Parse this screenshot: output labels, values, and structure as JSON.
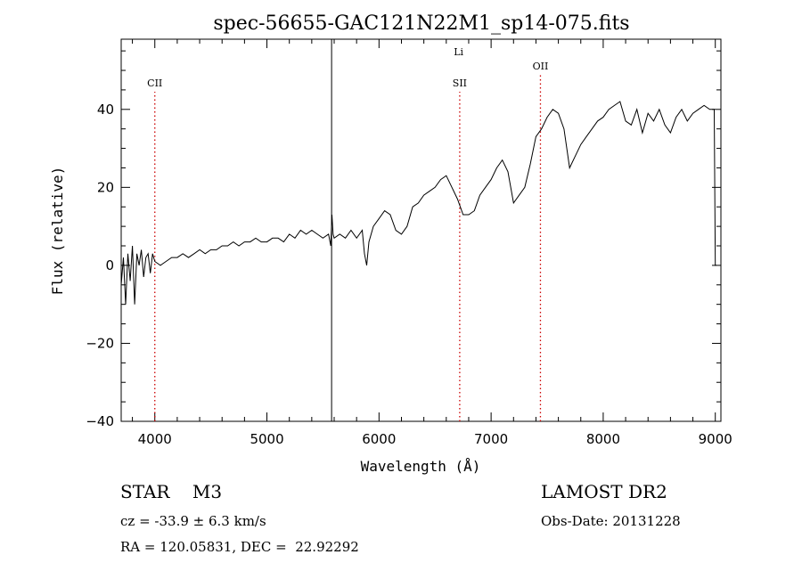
{
  "chart_data": {
    "type": "line",
    "title": "spec-56655-GAC121N22M1_sp14-075.fits",
    "xlabel": "Wavelength (Å)",
    "ylabel": "Flux (relative)",
    "xlim": [
      3700,
      9050
    ],
    "ylim": [
      -40,
      58
    ],
    "xticks": [
      4000,
      5000,
      6000,
      7000,
      8000,
      9000
    ],
    "yticks": [
      -40,
      -20,
      0,
      20,
      40
    ],
    "line_color": "#000000",
    "marker_color": "#cc0000",
    "series": [
      {
        "points": [
          [
            3700,
            -5
          ],
          [
            3720,
            2
          ],
          [
            3740,
            -10
          ],
          [
            3760,
            3
          ],
          [
            3780,
            -4
          ],
          [
            3800,
            5
          ],
          [
            3820,
            -10
          ],
          [
            3840,
            3
          ],
          [
            3860,
            0
          ],
          [
            3880,
            4
          ],
          [
            3900,
            -3
          ],
          [
            3920,
            2
          ],
          [
            3940,
            3
          ],
          [
            3960,
            -2
          ],
          [
            3980,
            3
          ],
          [
            4000,
            1
          ],
          [
            4050,
            0
          ],
          [
            4100,
            1
          ],
          [
            4150,
            2
          ],
          [
            4200,
            2
          ],
          [
            4250,
            3
          ],
          [
            4300,
            2
          ],
          [
            4350,
            3
          ],
          [
            4400,
            4
          ],
          [
            4450,
            3
          ],
          [
            4500,
            4
          ],
          [
            4550,
            4
          ],
          [
            4600,
            5
          ],
          [
            4650,
            5
          ],
          [
            4700,
            6
          ],
          [
            4750,
            5
          ],
          [
            4800,
            6
          ],
          [
            4850,
            6
          ],
          [
            4900,
            7
          ],
          [
            4950,
            6
          ],
          [
            5000,
            6
          ],
          [
            5050,
            7
          ],
          [
            5100,
            7
          ],
          [
            5150,
            6
          ],
          [
            5200,
            8
          ],
          [
            5250,
            7
          ],
          [
            5300,
            9
          ],
          [
            5350,
            8
          ],
          [
            5400,
            9
          ],
          [
            5450,
            8
          ],
          [
            5500,
            7
          ],
          [
            5550,
            8
          ],
          [
            5570,
            5
          ],
          [
            5580,
            13
          ],
          [
            5590,
            8
          ],
          [
            5600,
            7
          ],
          [
            5650,
            8
          ],
          [
            5700,
            7
          ],
          [
            5750,
            9
          ],
          [
            5800,
            7
          ],
          [
            5850,
            9
          ],
          [
            5870,
            3
          ],
          [
            5890,
            0
          ],
          [
            5910,
            6
          ],
          [
            5950,
            10
          ],
          [
            6000,
            12
          ],
          [
            6050,
            14
          ],
          [
            6100,
            13
          ],
          [
            6150,
            9
          ],
          [
            6200,
            8
          ],
          [
            6250,
            10
          ],
          [
            6300,
            15
          ],
          [
            6350,
            16
          ],
          [
            6400,
            18
          ],
          [
            6450,
            19
          ],
          [
            6500,
            20
          ],
          [
            6550,
            22
          ],
          [
            6600,
            23
          ],
          [
            6650,
            20
          ],
          [
            6700,
            17
          ],
          [
            6750,
            13
          ],
          [
            6800,
            13
          ],
          [
            6850,
            14
          ],
          [
            6900,
            18
          ],
          [
            6950,
            20
          ],
          [
            7000,
            22
          ],
          [
            7050,
            25
          ],
          [
            7100,
            27
          ],
          [
            7150,
            24
          ],
          [
            7200,
            16
          ],
          [
            7250,
            18
          ],
          [
            7300,
            20
          ],
          [
            7350,
            26
          ],
          [
            7400,
            33
          ],
          [
            7450,
            35
          ],
          [
            7500,
            38
          ],
          [
            7550,
            40
          ],
          [
            7600,
            39
          ],
          [
            7650,
            35
          ],
          [
            7700,
            25
          ],
          [
            7750,
            28
          ],
          [
            7800,
            31
          ],
          [
            7850,
            33
          ],
          [
            7900,
            35
          ],
          [
            7950,
            37
          ],
          [
            8000,
            38
          ],
          [
            8050,
            40
          ],
          [
            8100,
            41
          ],
          [
            8150,
            42
          ],
          [
            8200,
            37
          ],
          [
            8250,
            36
          ],
          [
            8300,
            40
          ],
          [
            8350,
            34
          ],
          [
            8400,
            39
          ],
          [
            8450,
            37
          ],
          [
            8500,
            40
          ],
          [
            8550,
            36
          ],
          [
            8600,
            34
          ],
          [
            8650,
            38
          ],
          [
            8700,
            40
          ],
          [
            8750,
            37
          ],
          [
            8800,
            39
          ],
          [
            8850,
            40
          ],
          [
            8900,
            41
          ],
          [
            8950,
            40
          ],
          [
            8990,
            40
          ],
          [
            9000,
            0
          ],
          [
            9010,
            0
          ]
        ]
      }
    ],
    "vertical_lines": [
      {
        "x": 5577,
        "color": "#000000",
        "style": "solid"
      }
    ],
    "line_markers": [
      {
        "label": "CII",
        "x": 4000
      },
      {
        "label": "SII",
        "x": 6720
      },
      {
        "label": "Li",
        "x": 6710
      },
      {
        "label": "OII",
        "x": 7440
      }
    ]
  },
  "info": {
    "object_line": "STAR    M3",
    "survey": "LAMOST DR2",
    "cz": "cz = -33.9 ± 6.3 km/s",
    "obs_date": "Obs-Date: 20131228",
    "radec": "RA = 120.05831, DEC =  22.92292"
  }
}
